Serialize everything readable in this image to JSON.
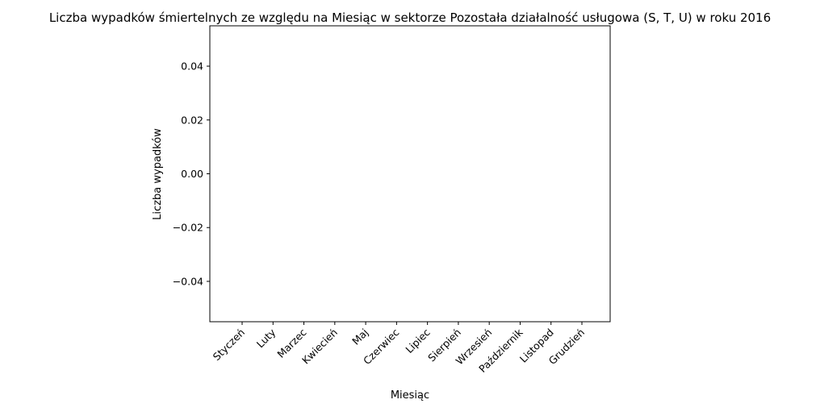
{
  "chart_data": {
    "type": "bar",
    "title": "Liczba wypadków śmiertelnych ze względu na Miesiąc w sektorze Pozostała działalność usługowa (S, T, U) w roku 2016",
    "xlabel": "Miesiąc",
    "ylabel": "Liczba wypadków",
    "categories": [
      "Styczeń",
      "Luty",
      "Marzec",
      "Kwiecień",
      "Maj",
      "Czerwiec",
      "Lipiec",
      "Sierpień",
      "Wrzesień",
      "Październik",
      "Listopad",
      "Grudzień"
    ],
    "values": [
      0,
      0,
      0,
      0,
      0,
      0,
      0,
      0,
      0,
      0,
      0,
      0
    ],
    "ylim": [
      -0.055,
      0.055
    ],
    "yticks": [
      -0.04,
      -0.02,
      0.0,
      0.02,
      0.04
    ],
    "ytick_labels": [
      "−0.04",
      "−0.02",
      "0.00",
      "0.02",
      "0.04"
    ],
    "grid": false,
    "bar_color": "#1f77b4"
  }
}
